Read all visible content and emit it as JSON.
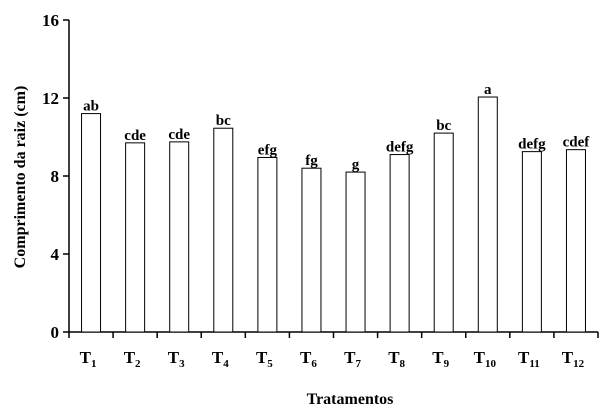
{
  "chart_data": {
    "type": "bar",
    "xlabel": "Tratamentos",
    "ylabel": "Comprimento da raiz (cm)",
    "ylim": [
      0,
      16
    ],
    "yticks": [
      0,
      4,
      8,
      12,
      16
    ],
    "grid": false,
    "categories": [
      {
        "base": "T",
        "sub": "1"
      },
      {
        "base": "T",
        "sub": "2"
      },
      {
        "base": "T",
        "sub": "3"
      },
      {
        "base": "T",
        "sub": "4"
      },
      {
        "base": "T",
        "sub": "5"
      },
      {
        "base": "T",
        "sub": "6"
      },
      {
        "base": "T",
        "sub": "7"
      },
      {
        "base": "T",
        "sub": "8"
      },
      {
        "base": "T",
        "sub": "9"
      },
      {
        "base": "T",
        "sub": "10"
      },
      {
        "base": "T",
        "sub": "11"
      },
      {
        "base": "T",
        "sub": "12"
      }
    ],
    "values": [
      11.2,
      9.7,
      9.75,
      10.45,
      8.95,
      8.4,
      8.2,
      9.1,
      10.2,
      12.05,
      9.25,
      9.35
    ],
    "bar_labels": [
      "ab",
      "cde",
      "cde",
      "bc",
      "efg",
      "fg",
      "g",
      "defg",
      "bc",
      "a",
      "defg",
      "cdef"
    ],
    "colors": {
      "bar_fill": "#ffffff",
      "bar_stroke": "#000000",
      "axis": "#000000"
    }
  }
}
